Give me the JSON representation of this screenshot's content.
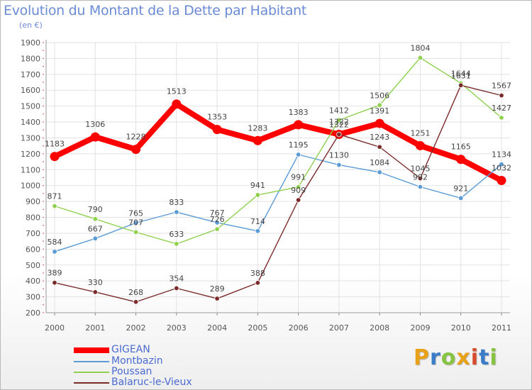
{
  "title": "Evolution du Montant de la Dette par Habitant",
  "unit": "(en €)",
  "logo": "Proxiti",
  "logo_colors": [
    "#e8a21a",
    "#3a7cc8",
    "#86c341",
    "#e8a21a",
    "#d84a2a",
    "#3a7cc8",
    "#86c341"
  ],
  "chart_data": {
    "type": "line",
    "x": [
      "2000",
      "2001",
      "2002",
      "2003",
      "2004",
      "2005",
      "2006",
      "2007",
      "2008",
      "2009",
      "2010",
      "2011"
    ],
    "ylim": [
      200,
      1900
    ],
    "yticks": [
      200,
      300,
      400,
      500,
      600,
      700,
      800,
      900,
      1000,
      1100,
      1200,
      1300,
      1400,
      1500,
      1600,
      1700,
      1800,
      1900
    ],
    "grid": true,
    "legend_position": "bottom-left",
    "series": [
      {
        "name": "GIGEAN",
        "color": "#ff0000",
        "values": [
          1183,
          1306,
          1228,
          1513,
          1353,
          1283,
          1383,
          1322,
          1391,
          1251,
          1165,
          1032
        ]
      },
      {
        "name": "Montbazin",
        "color": "#5b9bd5",
        "values": [
          584,
          667,
          765,
          833,
          767,
          714,
          1195,
          1130,
          1084,
          992,
          921,
          1134
        ]
      },
      {
        "name": "Poussan",
        "color": "#8fd14f",
        "values": [
          871,
          790,
          707,
          633,
          726,
          941,
          991,
          1412,
          1506,
          1804,
          1644,
          1427
        ]
      },
      {
        "name": "Balaruc-le-Vieux",
        "color": "#7b2a2a",
        "values": [
          389,
          330,
          268,
          354,
          289,
          388,
          909,
          1322,
          1243,
          1045,
          1631,
          1567
        ]
      }
    ]
  }
}
